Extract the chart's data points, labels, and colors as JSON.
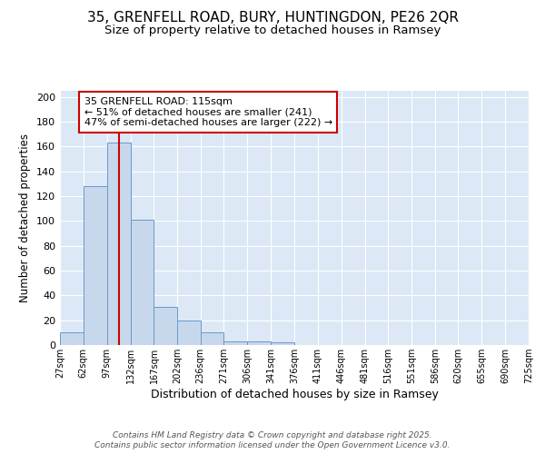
{
  "title1": "35, GRENFELL ROAD, BURY, HUNTINGDON, PE26 2QR",
  "title2": "Size of property relative to detached houses in Ramsey",
  "xlabel": "Distribution of detached houses by size in Ramsey",
  "ylabel": "Number of detached properties",
  "bin_edges": [
    27,
    62,
    97,
    132,
    167,
    202,
    236,
    271,
    306,
    341,
    376,
    411,
    446,
    481,
    516,
    551,
    586,
    620,
    655,
    690,
    725
  ],
  "bar_heights": [
    10,
    128,
    163,
    101,
    31,
    20,
    10,
    3,
    3,
    2,
    0,
    0,
    0,
    0,
    0,
    0,
    0,
    0,
    0,
    0
  ],
  "bar_color": "#c8d8ec",
  "bar_edge_color": "#6699cc",
  "bar_alpha": 1.0,
  "vline_x": 115,
  "vline_color": "#cc0000",
  "annotation_text": "35 GRENFELL ROAD: 115sqm\n← 51% of detached houses are smaller (241)\n47% of semi-detached houses are larger (222) →",
  "annotation_box_color": "#cc0000",
  "background_color": "#dce8f5",
  "grid_color": "#ffffff",
  "yticks": [
    0,
    20,
    40,
    60,
    80,
    100,
    120,
    140,
    160,
    180,
    200
  ],
  "ylim": [
    0,
    205
  ],
  "footer1": "Contains HM Land Registry data © Crown copyright and database right 2025.",
  "footer2": "Contains public sector information licensed under the Open Government Licence v3.0.",
  "tick_labels": [
    "27sqm",
    "62sqm",
    "97sqm",
    "132sqm",
    "167sqm",
    "202sqm",
    "236sqm",
    "271sqm",
    "306sqm",
    "341sqm",
    "376sqm",
    "411sqm",
    "446sqm",
    "481sqm",
    "516sqm",
    "551sqm",
    "586sqm",
    "620sqm",
    "655sqm",
    "690sqm",
    "725sqm"
  ],
  "title1_fontsize": 11,
  "title2_fontsize": 9.5,
  "xlabel_fontsize": 9,
  "ylabel_fontsize": 8.5,
  "tick_fontsize": 7,
  "ytick_fontsize": 8,
  "footer_fontsize": 6.5,
  "ann_fontsize": 8
}
